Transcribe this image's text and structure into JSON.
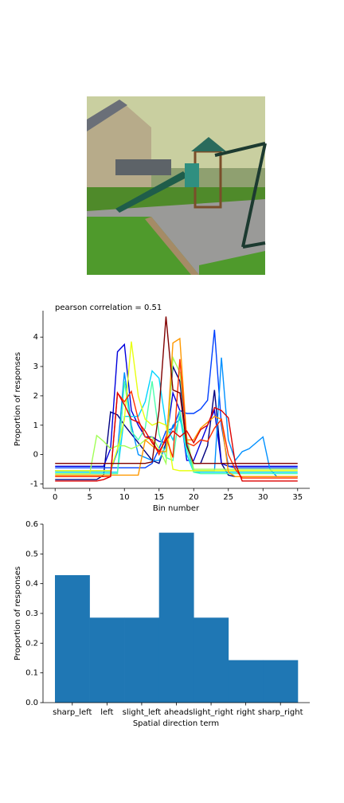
{
  "chart_data": [
    {
      "type": "line",
      "title": "pearson correlation = 0.51",
      "xlabel": "Bin number",
      "ylabel": "Proportion of responses",
      "x": [
        0,
        1,
        2,
        3,
        4,
        5,
        6,
        7,
        8,
        9,
        10,
        11,
        12,
        13,
        14,
        15,
        16,
        17,
        18,
        19,
        20,
        21,
        22,
        23,
        24,
        25,
        26,
        27,
        28,
        29,
        30,
        31,
        32,
        33,
        34,
        35
      ],
      "xlim": [
        -1.75,
        36.75
      ],
      "xticks": [
        0,
        5,
        10,
        15,
        20,
        25,
        30,
        35
      ],
      "ylim": [
        -1.15,
        4.9
      ],
      "yticks": [
        -1,
        0,
        1,
        2,
        3,
        4
      ],
      "series": [
        {
          "color": "#000080",
          "values": [
            -0.85,
            -0.85,
            -0.85,
            -0.85,
            -0.85,
            -0.85,
            -0.85,
            -0.7,
            1.45,
            1.35,
            1.0,
            0.7,
            0.4,
            0.1,
            -0.2,
            -0.3,
            0.4,
            3.0,
            2.5,
            0.3,
            -0.3,
            -0.3,
            0.3,
            2.2,
            -0.3,
            -0.7,
            -0.75,
            -0.75,
            -0.75,
            -0.75,
            -0.75,
            -0.75,
            -0.75,
            -0.75,
            -0.75,
            -0.75
          ]
        },
        {
          "color": "#0000dd",
          "values": [
            -0.4,
            -0.4,
            -0.4,
            -0.4,
            -0.4,
            -0.4,
            -0.4,
            -0.4,
            0.2,
            3.5,
            3.75,
            1.5,
            1.0,
            0.6,
            0.6,
            0.45,
            0.4,
            2.1,
            1.5,
            -0.2,
            -0.2,
            0.4,
            1.0,
            1.5,
            -0.3,
            -0.4,
            -0.4,
            -0.4,
            -0.4,
            -0.4,
            -0.4,
            -0.4,
            -0.4,
            -0.4,
            -0.4,
            -0.4
          ]
        },
        {
          "color": "#0040ff",
          "values": [
            -0.45,
            -0.45,
            -0.45,
            -0.45,
            -0.45,
            -0.45,
            -0.45,
            -0.45,
            -0.45,
            -0.45,
            -0.45,
            -0.45,
            -0.45,
            -0.45,
            -0.3,
            0.2,
            0.8,
            0.9,
            1.5,
            1.4,
            1.4,
            1.55,
            1.85,
            4.25,
            1.0,
            -0.4,
            -0.45,
            -0.45,
            -0.45,
            -0.45,
            -0.45,
            -0.45,
            -0.45,
            -0.45,
            -0.45,
            -0.45
          ]
        },
        {
          "color": "#0090ff",
          "values": [
            -0.55,
            -0.55,
            -0.55,
            -0.55,
            -0.55,
            -0.55,
            -0.55,
            -0.55,
            -0.55,
            0.1,
            2.8,
            1.0,
            0.0,
            -0.1,
            -0.2,
            -0.2,
            0.3,
            1.0,
            1.2,
            0.5,
            -0.55,
            -0.55,
            -0.55,
            -0.55,
            3.3,
            0.5,
            -0.2,
            0.1,
            0.2,
            0.4,
            0.6,
            -0.5,
            -0.75,
            -0.75,
            -0.75,
            -0.75
          ]
        },
        {
          "color": "#00d4ff",
          "values": [
            -0.6,
            -0.6,
            -0.6,
            -0.6,
            -0.6,
            -0.6,
            -0.6,
            -0.6,
            -0.6,
            -0.6,
            1.3,
            1.3,
            1.3,
            1.8,
            2.85,
            2.6,
            1.0,
            0.5,
            1.3,
            0.0,
            -0.6,
            -0.6,
            -0.6,
            -0.6,
            -0.6,
            -0.6,
            -0.6,
            -0.6,
            -0.6,
            -0.6,
            -0.6,
            -0.6,
            -0.6,
            -0.6,
            -0.6,
            -0.6
          ]
        },
        {
          "color": "#4dffad",
          "values": [
            -0.65,
            -0.65,
            -0.65,
            -0.65,
            -0.65,
            -0.65,
            -0.65,
            -0.65,
            -0.65,
            -0.65,
            2.5,
            0.8,
            0.5,
            0.9,
            2.5,
            0.7,
            -0.1,
            -0.2,
            1.5,
            0.2,
            -0.6,
            -0.65,
            -0.65,
            -0.65,
            -0.65,
            -0.65,
            -0.65,
            -0.65,
            -0.65,
            -0.65,
            -0.65,
            -0.65,
            -0.65,
            -0.65,
            -0.65,
            -0.65
          ]
        },
        {
          "color": "#a0ff56",
          "values": [
            -0.65,
            -0.65,
            -0.65,
            -0.65,
            -0.65,
            -0.65,
            0.65,
            0.45,
            0.2,
            0.3,
            0.3,
            0.2,
            0.3,
            0.5,
            0.6,
            0.2,
            -0.3,
            3.3,
            2.8,
            0.6,
            -0.5,
            -0.5,
            -0.5,
            -0.5,
            -0.5,
            -0.5,
            -0.5,
            -0.5,
            -0.5,
            -0.5,
            -0.5,
            -0.5,
            -0.5,
            -0.5,
            -0.5,
            -0.5
          ]
        },
        {
          "color": "#e8ff10",
          "values": [
            -0.55,
            -0.55,
            -0.55,
            -0.55,
            -0.55,
            -0.55,
            -0.55,
            -0.55,
            -0.55,
            0.2,
            1.2,
            3.85,
            2.0,
            1.2,
            1.0,
            1.1,
            1.0,
            -0.5,
            -0.55,
            -0.55,
            -0.55,
            -0.55,
            -0.55,
            -0.55,
            -0.55,
            -0.55,
            -0.55,
            -0.55,
            -0.55,
            -0.55,
            -0.55,
            -0.55,
            -0.55,
            -0.55,
            -0.55,
            -0.55
          ]
        },
        {
          "color": "#ff9900",
          "values": [
            -0.7,
            -0.7,
            -0.7,
            -0.7,
            -0.7,
            -0.7,
            -0.7,
            -0.7,
            -0.7,
            -0.7,
            -0.7,
            -0.7,
            -0.7,
            0.5,
            0.3,
            0.1,
            0.1,
            3.8,
            3.95,
            0.5,
            0.5,
            0.9,
            1.1,
            1.3,
            1.2,
            -0.6,
            -0.75,
            -0.75,
            -0.75,
            -0.75,
            -0.75,
            -0.75,
            -0.75,
            -0.75,
            -0.75,
            -0.75
          ]
        },
        {
          "color": "#ff3000",
          "values": [
            -0.75,
            -0.75,
            -0.75,
            -0.75,
            -0.75,
            -0.75,
            -0.75,
            -0.75,
            -0.75,
            2.1,
            1.8,
            2.15,
            1.2,
            0.6,
            0.5,
            0.0,
            0.6,
            -0.1,
            3.25,
            0.4,
            0.3,
            0.5,
            0.45,
            0.9,
            1.2,
            0.0,
            -0.5,
            -0.8,
            -0.8,
            -0.8,
            -0.8,
            -0.8,
            -0.8,
            -0.8,
            -0.8,
            -0.8
          ]
        },
        {
          "color": "#dd0000",
          "values": [
            -0.9,
            -0.9,
            -0.9,
            -0.9,
            -0.9,
            -0.9,
            -0.9,
            -0.85,
            -0.75,
            2.1,
            1.7,
            1.2,
            1.1,
            0.8,
            0.4,
            0.1,
            0.5,
            0.8,
            0.6,
            0.8,
            0.4,
            0.85,
            1.0,
            1.6,
            1.5,
            1.25,
            -0.3,
            -0.9,
            -0.9,
            -0.9,
            -0.9,
            -0.9,
            -0.9,
            -0.9,
            -0.9,
            -0.9
          ]
        },
        {
          "color": "#800000",
          "values": [
            -0.3,
            -0.3,
            -0.3,
            -0.3,
            -0.3,
            -0.3,
            -0.3,
            -0.3,
            -0.3,
            -0.3,
            -0.3,
            -0.3,
            -0.3,
            -0.3,
            -0.25,
            1.5,
            4.7,
            2.2,
            2.1,
            0.3,
            -0.3,
            -0.3,
            -0.3,
            -0.3,
            -0.3,
            -0.3,
            -0.3,
            -0.3,
            -0.3,
            -0.3,
            -0.3,
            -0.3,
            -0.3,
            -0.3,
            -0.3,
            -0.3
          ]
        }
      ]
    },
    {
      "type": "bar",
      "xlabel": "Spatial direction term",
      "ylabel": "Proportion of responses",
      "color": "#1f77b4",
      "categories": [
        "sharp_left",
        "left",
        "slight_left",
        "ahead",
        "slight_right",
        "right",
        "sharp_right"
      ],
      "values": [
        0.42857,
        0.28571,
        0.28571,
        0.57143,
        0.28571,
        0.14286,
        0.14286
      ],
      "ylim": [
        0,
        0.6
      ],
      "yticks": [
        {
          "value": 0,
          "label": "0.0"
        },
        0.1,
        0.2,
        0.3,
        0.4,
        0.5,
        0.6
      ]
    }
  ]
}
